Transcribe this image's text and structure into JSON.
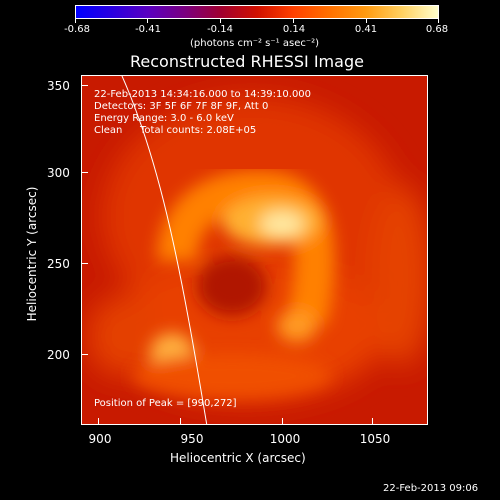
{
  "colorbar": {
    "labels": [
      "-0.68",
      "-0.41",
      "-0.14",
      "0.14",
      "0.41",
      "0.68"
    ],
    "unit": "(photons cm⁻² s⁻¹ asec⁻²)"
  },
  "title": "Reconstructed RHESSI Image",
  "info": {
    "time_range": "22-Feb-2013 14:34:16.000 to 14:39:10.000",
    "detectors": "Detectors: 3F 5F 6F 7F 8F 9F, Att 0",
    "energy": "Energy Range: 3.0 - 6.0 keV",
    "method": "Clean",
    "counts": "Total counts: 2.08E+05",
    "peak": "Position of Peak = [990,272]"
  },
  "axes": {
    "x_label": "Heliocentric X (arcsec)",
    "y_label": "Heliocentric Y (arcsec)",
    "x_ticks": [
      "900",
      "950",
      "1000",
      "1050"
    ],
    "y_ticks": [
      "350",
      "300",
      "250",
      "200"
    ]
  },
  "footer": {
    "date": "22-Feb-2013 09:06"
  }
}
